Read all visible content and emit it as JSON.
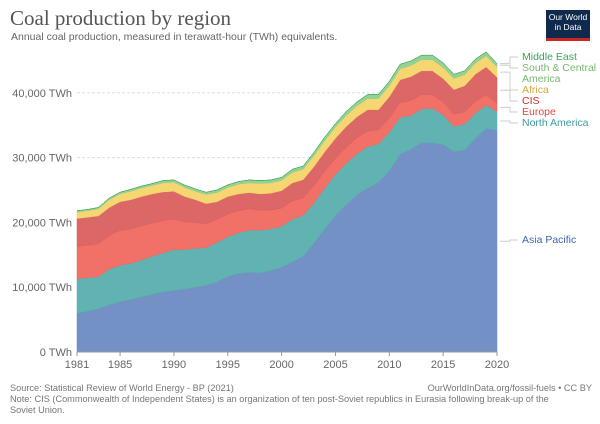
{
  "header": {
    "title": "Coal production by region",
    "subtitle": "Annual coal production, measured in terawatt-hour (TWh) equivalents.",
    "logo_line1": "Our World",
    "logo_line2": "in Data"
  },
  "footer": {
    "source": "Source: Statistical Review of World Energy - BP (2021)",
    "credit": "OurWorldInData.org/fossil-fuels • CC BY",
    "note": "Note: CIS (Commonwealth of Independent States) is an organization of ten post-Soviet republics in Eurasia following break-up of the Soviet Union."
  },
  "chart_data": {
    "type": "area",
    "stacked": true,
    "title": "Coal production by region",
    "subtitle": "Annual coal production, measured in terawatt-hour (TWh) equivalents.",
    "xlabel": "",
    "ylabel": "",
    "unit": "TWh",
    "xlim": [
      1981,
      2020
    ],
    "ylim": [
      0,
      47000
    ],
    "grid": "horizontal-dashed",
    "legend_placement": "right (inline labels)",
    "x_ticks": [
      1981,
      1985,
      1990,
      1995,
      2000,
      2005,
      2010,
      2015,
      2020
    ],
    "x_tick_labels": [
      "1981",
      "1985",
      "1990",
      "1995",
      "2000",
      "2005",
      "2010",
      "2015",
      "2020"
    ],
    "y_ticks": [
      0,
      10000,
      20000,
      30000,
      40000
    ],
    "y_tick_labels": [
      "0 TWh",
      "10,000 TWh",
      "20,000 TWh",
      "30,000 TWh",
      "40,000 TWh"
    ],
    "x": [
      1981,
      1982,
      1983,
      1984,
      1985,
      1986,
      1987,
      1988,
      1989,
      1990,
      1991,
      1992,
      1993,
      1994,
      1995,
      1996,
      1997,
      1998,
      1999,
      2000,
      2001,
      2002,
      2003,
      2004,
      2005,
      2006,
      2007,
      2008,
      2009,
      2010,
      2011,
      2012,
      2013,
      2014,
      2015,
      2016,
      2017,
      2018,
      2019,
      2020
    ],
    "series": [
      {
        "name": "Asia Pacific",
        "color": "#6d8bc3",
        "values": [
          6000,
          6300,
          6700,
          7300,
          7800,
          8100,
          8500,
          8900,
          9300,
          9500,
          9700,
          10000,
          10300,
          10800,
          11700,
          12100,
          12300,
          12200,
          12600,
          13100,
          13900,
          14800,
          16800,
          19000,
          21100,
          22700,
          24300,
          25300,
          26200,
          28000,
          30500,
          31300,
          32300,
          32300,
          32000,
          30900,
          31200,
          33000,
          34500,
          34200
        ]
      },
      {
        "name": "North America",
        "color": "#58afae",
        "values": [
          5300,
          5200,
          4900,
          5500,
          5600,
          5600,
          5700,
          5900,
          6000,
          6300,
          6100,
          6000,
          5800,
          6100,
          6100,
          6300,
          6500,
          6600,
          6400,
          6300,
          6600,
          6300,
          6200,
          6300,
          6300,
          6400,
          6300,
          6400,
          5900,
          5900,
          5700,
          5200,
          5200,
          5300,
          4600,
          3900,
          4000,
          3900,
          3600,
          2900
        ]
      },
      {
        "name": "Europe",
        "color": "#f0685f",
        "values": [
          5000,
          5000,
          5100,
          5200,
          5400,
          5300,
          5300,
          5100,
          5000,
          4700,
          4300,
          4000,
          3700,
          3600,
          3500,
          3400,
          3300,
          3100,
          2900,
          2800,
          2800,
          2700,
          2700,
          2600,
          2500,
          2500,
          2500,
          2400,
          2200,
          2200,
          2300,
          2300,
          2200,
          2100,
          2000,
          1900,
          1900,
          1800,
          1600,
          1300
        ]
      },
      {
        "name": "CIS",
        "color": "#d95f5f",
        "values": [
          4300,
          4300,
          4300,
          4300,
          4400,
          4500,
          4500,
          4500,
          4400,
          4300,
          3900,
          3500,
          3100,
          2700,
          2700,
          2600,
          2500,
          2500,
          2600,
          2700,
          2800,
          2800,
          2900,
          3000,
          3100,
          3200,
          3200,
          3300,
          3100,
          3300,
          3500,
          3700,
          3700,
          3700,
          3600,
          3800,
          4000,
          4200,
          4300,
          4000
        ]
      },
      {
        "name": "Africa",
        "color": "#f6d469",
        "values": [
          1000,
          1000,
          1100,
          1200,
          1200,
          1300,
          1300,
          1300,
          1400,
          1400,
          1400,
          1300,
          1400,
          1400,
          1400,
          1500,
          1500,
          1600,
          1600,
          1600,
          1600,
          1600,
          1700,
          1700,
          1700,
          1700,
          1700,
          1700,
          1700,
          1700,
          1700,
          1700,
          1700,
          1700,
          1700,
          1700,
          1700,
          1700,
          1700,
          1600
        ]
      },
      {
        "name": "South & Central America",
        "color": "#8ecf8e",
        "values": [
          200,
          200,
          200,
          250,
          250,
          300,
          300,
          300,
          350,
          350,
          350,
          350,
          350,
          400,
          400,
          400,
          450,
          450,
          450,
          450,
          500,
          500,
          500,
          550,
          550,
          600,
          600,
          650,
          650,
          650,
          700,
          700,
          700,
          700,
          700,
          650,
          600,
          600,
          600,
          500
        ]
      },
      {
        "name": "Middle East",
        "color": "#3ba35b",
        "values": [
          10,
          10,
          10,
          10,
          10,
          10,
          10,
          10,
          10,
          10,
          10,
          10,
          10,
          10,
          10,
          10,
          10,
          10,
          10,
          10,
          10,
          10,
          10,
          10,
          10,
          10,
          10,
          10,
          10,
          10,
          10,
          10,
          10,
          10,
          10,
          10,
          10,
          10,
          10,
          10
        ]
      }
    ]
  },
  "legend": [
    {
      "label": "Middle East",
      "color": "#3ba35b"
    },
    {
      "label": "South & Central",
      "label2": "America",
      "color": "#79b86f"
    },
    {
      "label": "Africa",
      "color": "#d3a83a"
    },
    {
      "label": "CIS",
      "color": "#c8302b"
    },
    {
      "label": "Europe",
      "color": "#e5453f"
    },
    {
      "label": "North America",
      "color": "#3b9ba0"
    },
    {
      "label": "Asia Pacific",
      "color": "#3e66b6"
    }
  ]
}
